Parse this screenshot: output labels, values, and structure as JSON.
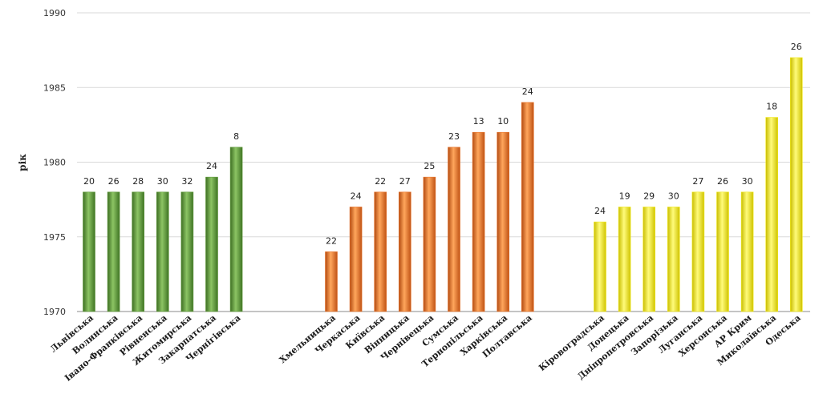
{
  "chart_data": {
    "type": "bar",
    "title": "",
    "xlabel": "",
    "ylabel": "рік",
    "ylim": [
      1970,
      1990
    ],
    "yticks": [
      1970,
      1975,
      1980,
      1985,
      1990
    ],
    "grid": true,
    "groups": [
      {
        "name": "group-green",
        "color": "#5f9a3a",
        "categories": [
          "Львівська",
          "Волинська",
          "Івано-Франківська",
          "Рівненська",
          "Житомирська",
          "Закарпатська",
          "Чернігівська"
        ],
        "values": [
          1978,
          1978,
          1978,
          1978,
          1978,
          1979,
          1981
        ],
        "labels": [
          "20",
          "26",
          "28",
          "30",
          "32",
          "24",
          "8"
        ]
      },
      {
        "name": "group-orange",
        "color": "#e8732a",
        "categories": [
          "Хмельницька",
          "Черкаська",
          "Київська",
          "Вінницька",
          "Чернівецька",
          "Сумська",
          "Тернопільська",
          "Харківська",
          "Полтавська"
        ],
        "values": [
          1974,
          1977,
          1978,
          1978,
          1979,
          1981,
          1982,
          1982,
          1984
        ],
        "labels": [
          "22",
          "24",
          "22",
          "27",
          "25",
          "23",
          "13",
          "10",
          "24"
        ]
      },
      {
        "name": "group-yellow",
        "color": "#f2ea1c",
        "categories": [
          "Кіровоградська",
          "Донецька",
          "Дніпропетровська",
          "Запорізька",
          "Луганська",
          "Херсонська",
          "АР Крим",
          "Миколаївська",
          "Одеська"
        ],
        "values": [
          1976,
          1977,
          1977,
          1977,
          1978,
          1978,
          1978,
          1983,
          1987
        ],
        "labels": [
          "24",
          "19",
          "29",
          "30",
          "27",
          "26",
          "30",
          "18",
          "26"
        ]
      }
    ]
  }
}
